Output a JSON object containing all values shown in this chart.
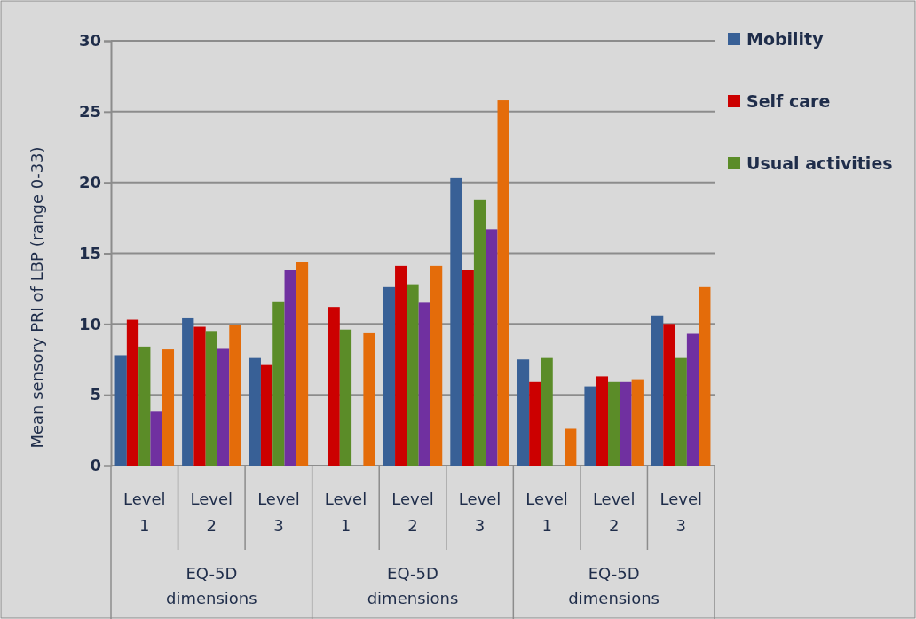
{
  "chart_data": {
    "type": "bar",
    "ylabel": "Mean sensory PRI of LBP (range 0-33)",
    "categories": [
      "Level 1",
      "Level 2",
      "Level 3",
      "Level 1",
      "Level 2",
      "Level 3",
      "Level 1",
      "Level 2",
      "Level 3"
    ],
    "series": [
      {
        "name": "Mobility",
        "color": "#386096",
        "values": [
          7.8,
          10.4,
          7.6,
          null,
          12.6,
          20.3,
          7.5,
          5.6,
          10.6
        ]
      },
      {
        "name": "Self care",
        "color": "#cc0000",
        "values": [
          10.3,
          9.8,
          7.1,
          11.2,
          14.1,
          13.8,
          5.9,
          6.3,
          10.0
        ]
      },
      {
        "name": "Usual activities",
        "color": "#5b8c28",
        "values": [
          8.4,
          9.5,
          11.6,
          9.6,
          12.8,
          18.8,
          7.6,
          5.9,
          7.6
        ]
      },
      {
        "color": "#7030a0",
        "values": [
          3.8,
          8.3,
          13.8,
          null,
          11.5,
          16.7,
          null,
          5.9,
          9.3
        ]
      },
      {
        "color": "#e46c0a",
        "values": [
          8.2,
          9.9,
          14.4,
          9.4,
          14.1,
          25.8,
          2.6,
          6.1,
          12.6
        ]
      }
    ],
    "annotations": [
      "EQ-5D dimensions",
      "EQ-5D dimensions",
      "EQ-5D dimensions"
    ],
    "ylim": [
      0,
      30
    ],
    "yticks": [
      0,
      5,
      10,
      15,
      20,
      25,
      30
    ],
    "grid": "y",
    "legend": "top right"
  }
}
